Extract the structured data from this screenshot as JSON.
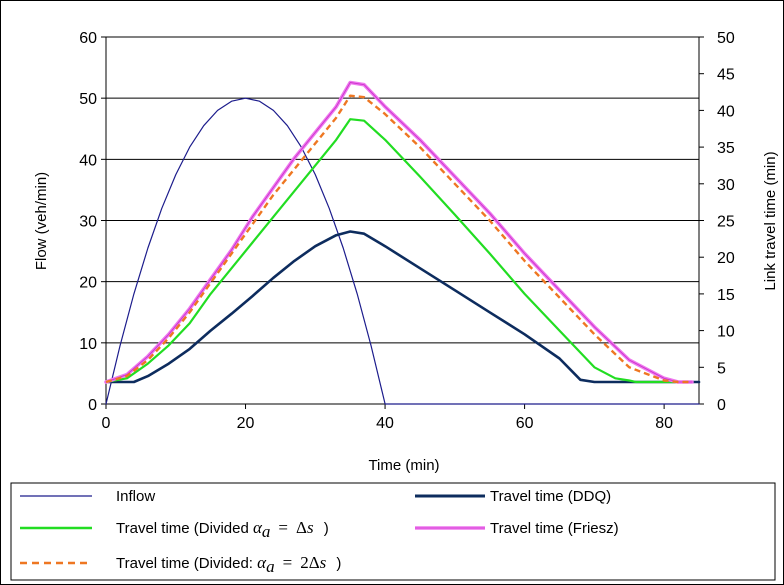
{
  "chart_data": {
    "type": "line",
    "xlabel": "Time (min)",
    "ylabel": "Flow (veh/min)",
    "y2label": "Link travel time (min)",
    "xlim": [
      0,
      85
    ],
    "ylim": [
      0,
      60
    ],
    "y2lim": [
      0,
      50
    ],
    "x_ticks": [
      "0",
      "20",
      "40",
      "60",
      "80"
    ],
    "y_ticks": [
      "0",
      "10",
      "20",
      "30",
      "40",
      "50",
      "60"
    ],
    "y2_ticks": [
      "0",
      "5",
      "10",
      "15",
      "20",
      "25",
      "30",
      "35",
      "40",
      "45",
      "50"
    ],
    "grid": "horizontal",
    "legend_placement": "bottom",
    "series": [
      {
        "name": "Inflow",
        "axis": "left",
        "color": "#1c1c8c",
        "style": "solid-thin",
        "x": [
          0,
          2,
          4,
          6,
          8,
          10,
          12,
          14,
          16,
          18,
          20,
          22,
          24,
          26,
          28,
          30,
          32,
          34,
          36,
          38,
          40,
          45,
          50,
          60,
          70,
          80,
          85
        ],
        "y": [
          0,
          9.5,
          18,
          25.5,
          32,
          37.5,
          42,
          45.5,
          48,
          49.5,
          50,
          49.5,
          48,
          45.5,
          42,
          37.5,
          32,
          25.5,
          18,
          9.5,
          0,
          0,
          0,
          0,
          0,
          0,
          0
        ]
      },
      {
        "name": "Travel time (DDQ)",
        "axis": "right",
        "color": "#0d2c5e",
        "style": "solid-thick",
        "x": [
          0,
          4,
          6,
          9,
          12,
          15,
          18,
          21,
          24,
          27,
          30,
          33,
          35,
          37,
          40,
          45,
          50,
          55,
          60,
          65,
          68,
          70,
          80,
          85
        ],
        "y": [
          3,
          3,
          3.8,
          5.5,
          7.5,
          10,
          12.3,
          14.7,
          17.2,
          19.5,
          21.5,
          23,
          23.5,
          23.2,
          21.5,
          18.5,
          15.5,
          12.5,
          9.5,
          6.2,
          3.3,
          3,
          3,
          3
        ]
      },
      {
        "name": "Travel time (Divided α_a = Δs )",
        "axis": "right",
        "color": "#22dd22",
        "style": "solid-medium",
        "x": [
          0,
          3,
          6,
          9,
          12,
          15,
          18,
          21,
          24,
          27,
          30,
          33,
          35,
          37,
          40,
          45,
          50,
          55,
          60,
          65,
          70,
          73,
          75,
          76,
          80,
          84
        ],
        "y": [
          3,
          3.5,
          5.5,
          8,
          11,
          15,
          18.5,
          22,
          25.5,
          29,
          32.5,
          36,
          38.8,
          38.6,
          36,
          31,
          25.8,
          20.5,
          15,
          10,
          5,
          3.5,
          3.2,
          3,
          3,
          3
        ]
      },
      {
        "name": "Travel time (Friesz)",
        "axis": "right",
        "color": "#ee77ee",
        "style": "solid-band",
        "x": [
          0,
          3,
          6,
          9,
          12,
          15,
          18,
          21,
          24,
          27,
          30,
          33,
          35,
          37,
          40,
          45,
          50,
          55,
          60,
          65,
          70,
          75,
          80,
          82,
          84
        ],
        "y": [
          3,
          4,
          6.5,
          9.5,
          13,
          17,
          21,
          25.5,
          29.5,
          33.5,
          37,
          40.5,
          43.8,
          43.5,
          40.5,
          36,
          31,
          26,
          20.5,
          15.5,
          10.5,
          6,
          3.5,
          3,
          3
        ]
      },
      {
        "name": "Travel time (Divided: α_a = 2Δs )",
        "axis": "right",
        "color": "#ee7722",
        "style": "dashed",
        "x": [
          0,
          3,
          6,
          9,
          12,
          15,
          18,
          21,
          24,
          27,
          30,
          33,
          35,
          37,
          40,
          45,
          50,
          55,
          60,
          65,
          70,
          75,
          80,
          82,
          84
        ],
        "y": [
          3,
          3.8,
          6,
          9,
          12.5,
          16.5,
          20.5,
          24.5,
          28.5,
          32,
          35.5,
          39,
          42,
          41.8,
          39.5,
          35,
          30,
          25,
          19.5,
          14.5,
          9.5,
          5,
          3.2,
          3,
          3
        ]
      }
    ],
    "legend": {
      "inflow": "Inflow",
      "ddq": "Travel time (DDQ)",
      "divided1_prefix": "Travel time (Divided ",
      "divided1_suffix": " )",
      "friesz": "Travel time (Friesz)",
      "divided2_prefix": "Travel time (Divided: ",
      "divided2_suffix": " )",
      "math_alpha": "α",
      "math_sub": "a",
      "math_eq": "=",
      "math_delta": "Δ",
      "math_s": "s",
      "math_two": "2"
    }
  }
}
